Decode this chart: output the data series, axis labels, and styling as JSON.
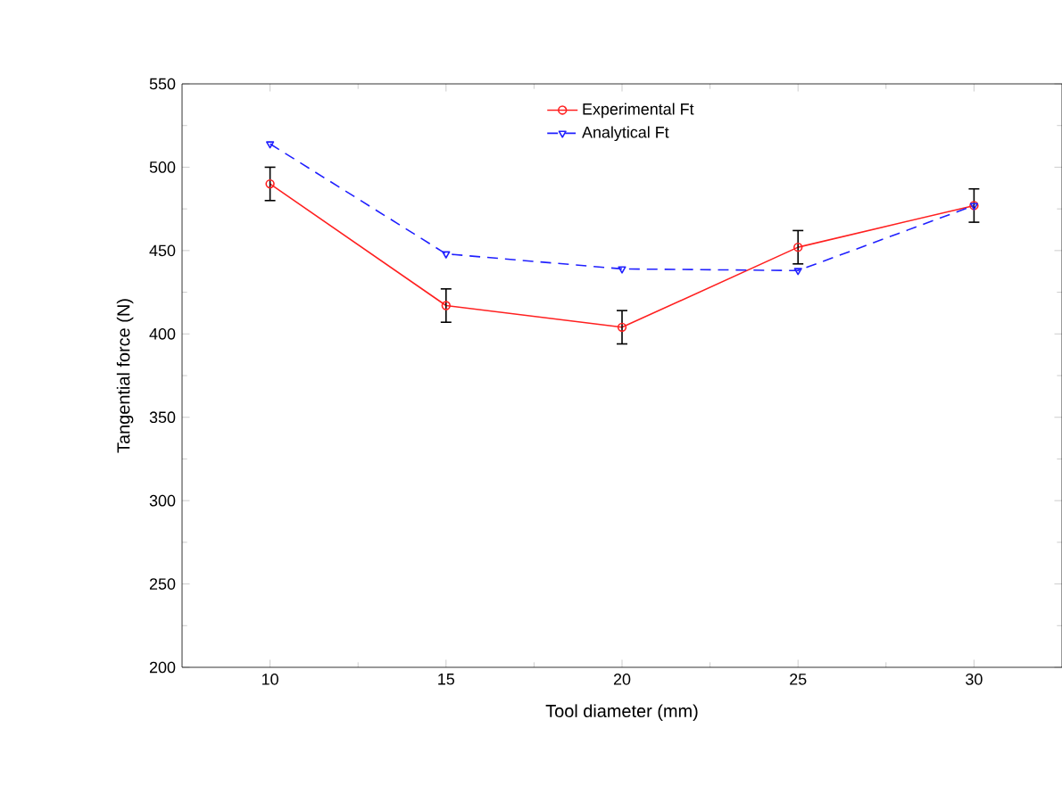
{
  "chart_data": {
    "type": "line",
    "xlabel": "Tool diameter (mm)",
    "ylabel": "Tangential force (N)",
    "x": [
      10,
      15,
      20,
      25,
      30
    ],
    "series": [
      {
        "name": "Experimental Ft",
        "color": "#ff2020",
        "values": [
          490,
          417,
          404,
          452,
          477
        ],
        "errors": [
          10,
          10,
          10,
          10,
          10
        ],
        "marker": "circle",
        "line_style": "solid"
      },
      {
        "name": "Analytical Ft",
        "color": "#2020ff",
        "values": [
          514,
          448,
          439,
          438,
          477
        ],
        "marker": "triangle",
        "line_style": "dashed"
      }
    ],
    "xlim": [
      7.5,
      32.5
    ],
    "xticks": [
      10,
      15,
      20,
      25,
      30
    ],
    "ylim": [
      200,
      550
    ],
    "yticks": [
      200,
      250,
      300,
      350,
      400,
      450,
      500,
      550
    ],
    "grid": false,
    "legend": "top"
  }
}
